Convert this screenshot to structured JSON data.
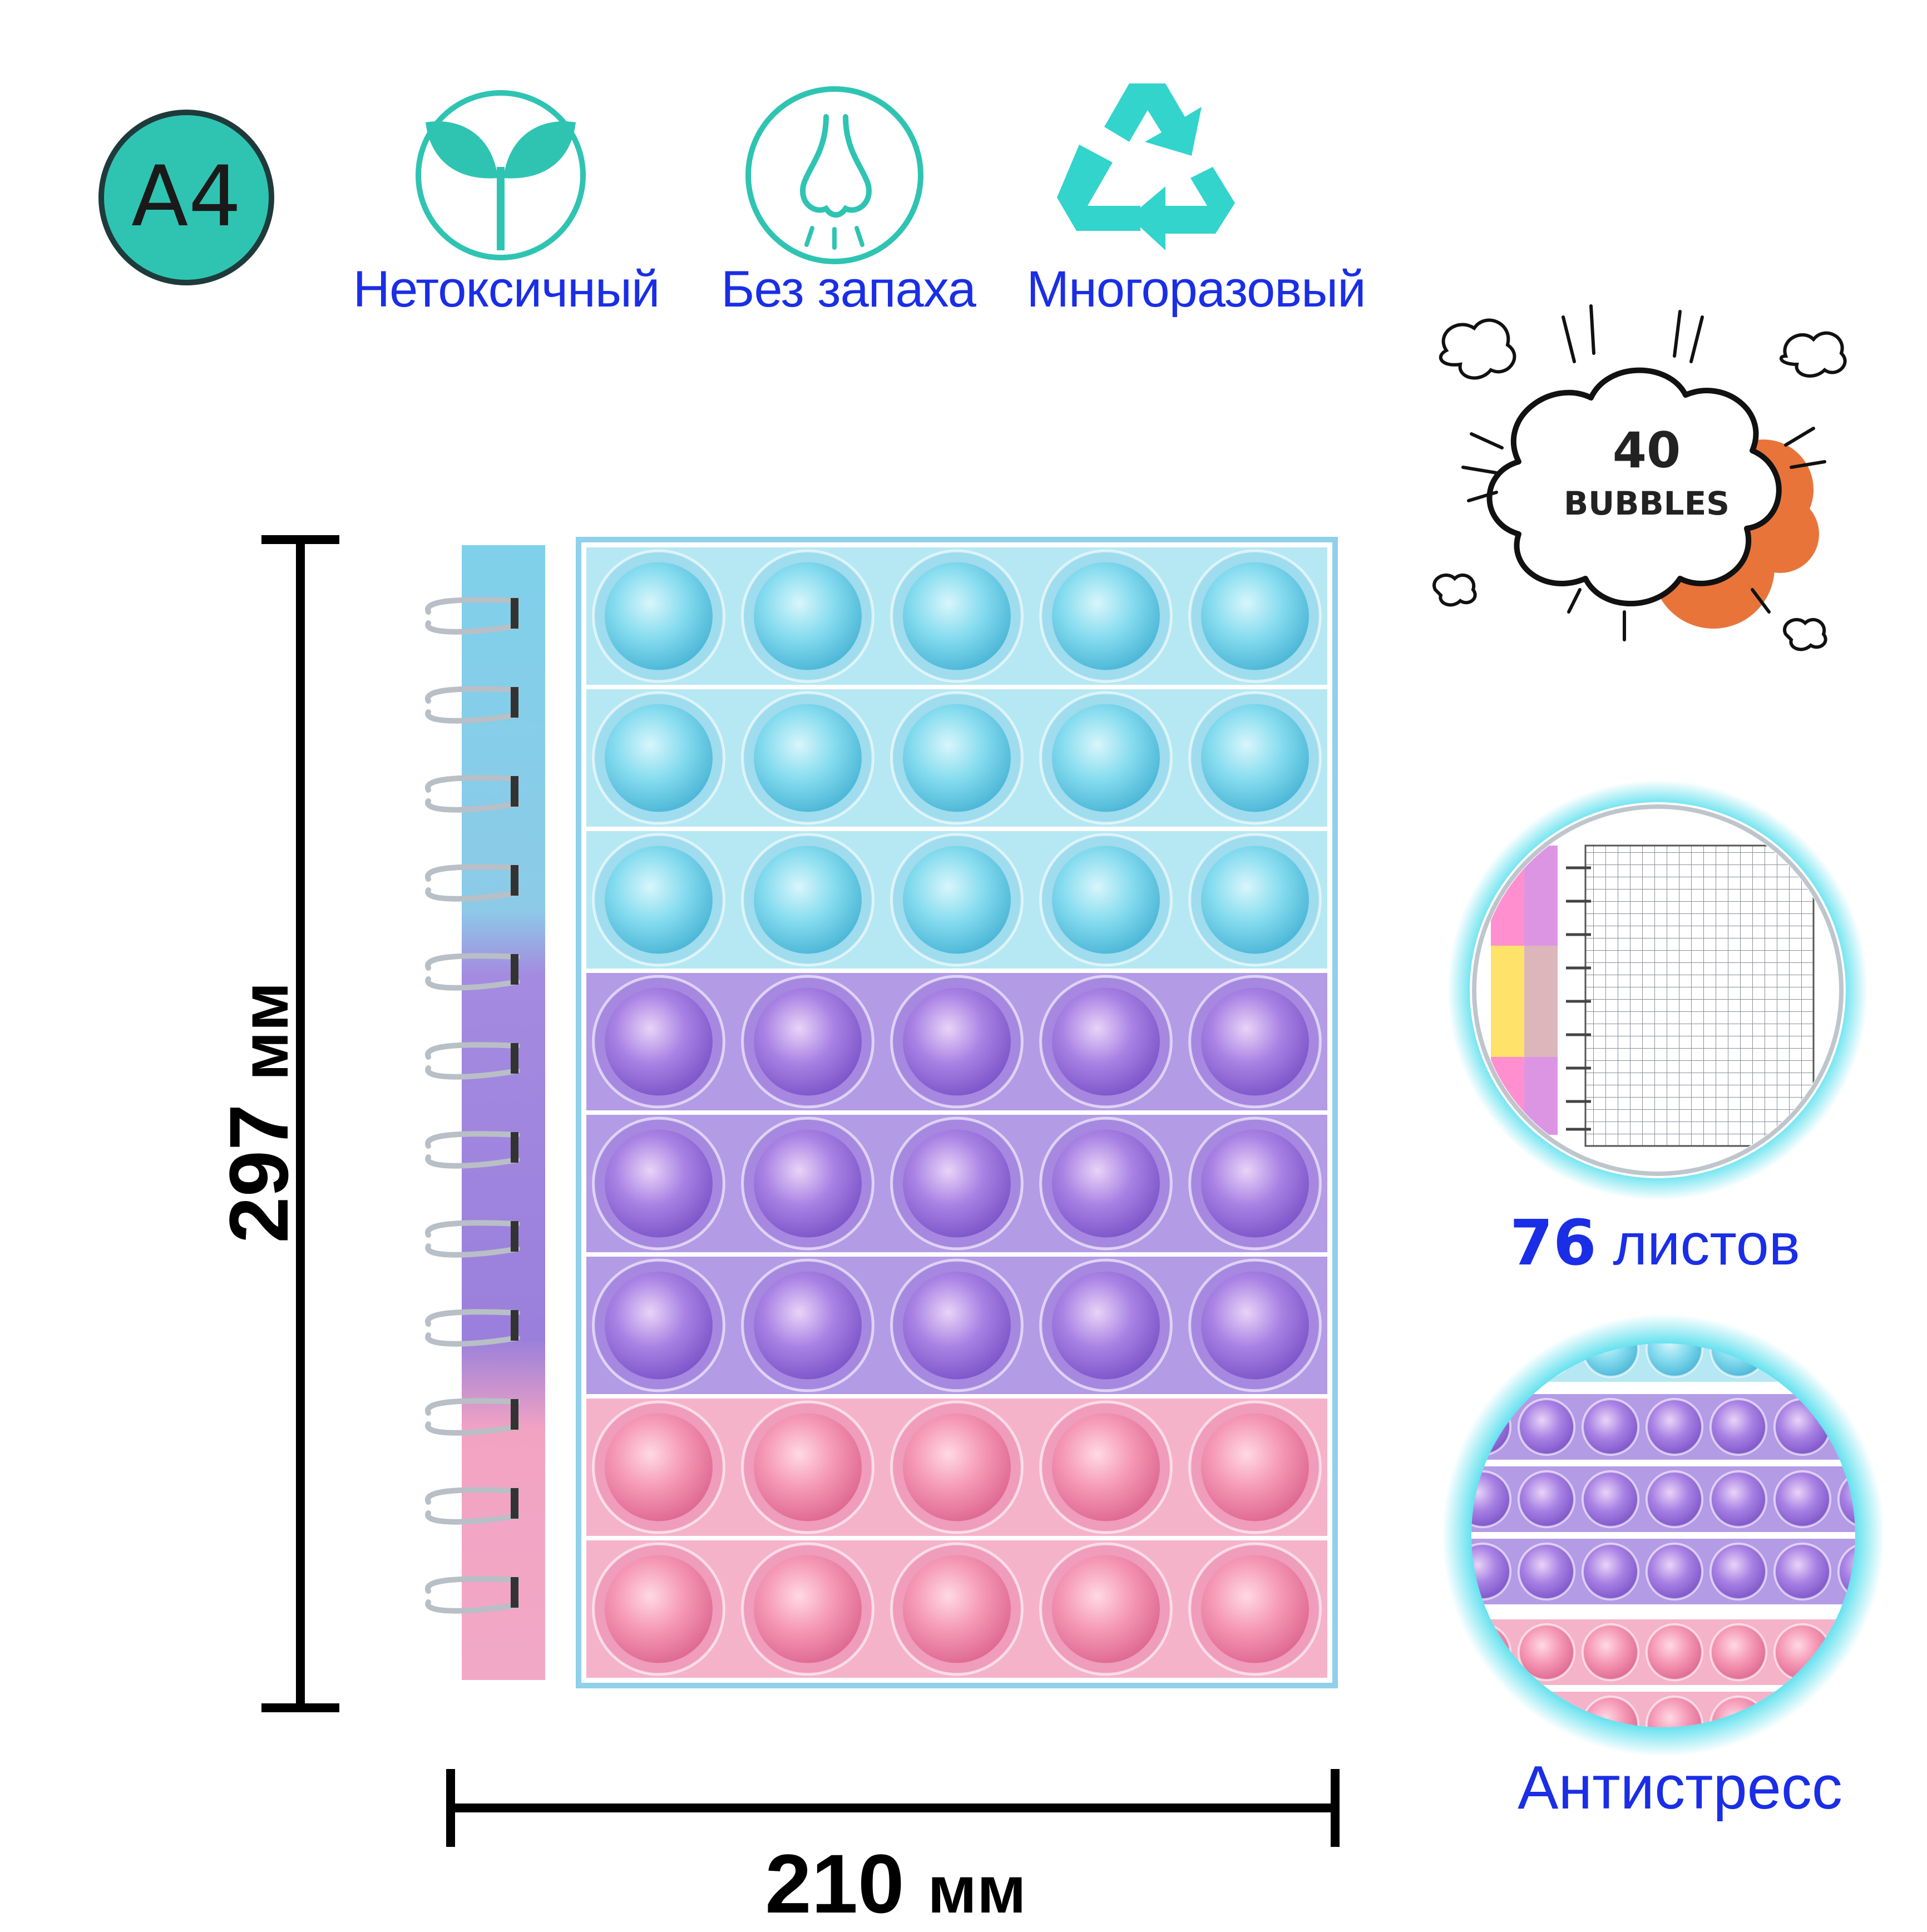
{
  "badge": {
    "text": "A4",
    "color": "#2fc4b2"
  },
  "features": [
    {
      "icon": "sprout-icon",
      "label": "Нетоксичный"
    },
    {
      "icon": "nose-icon",
      "label": "Без запаха"
    },
    {
      "icon": "recycle-icon",
      "label": "Многоразовый"
    }
  ],
  "bubbles_sticker": {
    "number": "40",
    "word": "BUBBLES"
  },
  "dimensions": {
    "height_value": "297",
    "height_unit": "мм",
    "width_value": "210",
    "width_unit": "мм"
  },
  "sheets": {
    "count": "76",
    "label": "листов"
  },
  "antistress_label": "Антистресс",
  "notebook": {
    "rows": 8,
    "columns": 5,
    "row_colors": [
      "blue",
      "blue",
      "blue",
      "purple",
      "purple",
      "purple",
      "pink",
      "pink"
    ]
  },
  "colors": {
    "accent_blue": "#1a2ee6",
    "teal": "#2fc4b2",
    "cyan_glow": "#19d3e6"
  }
}
